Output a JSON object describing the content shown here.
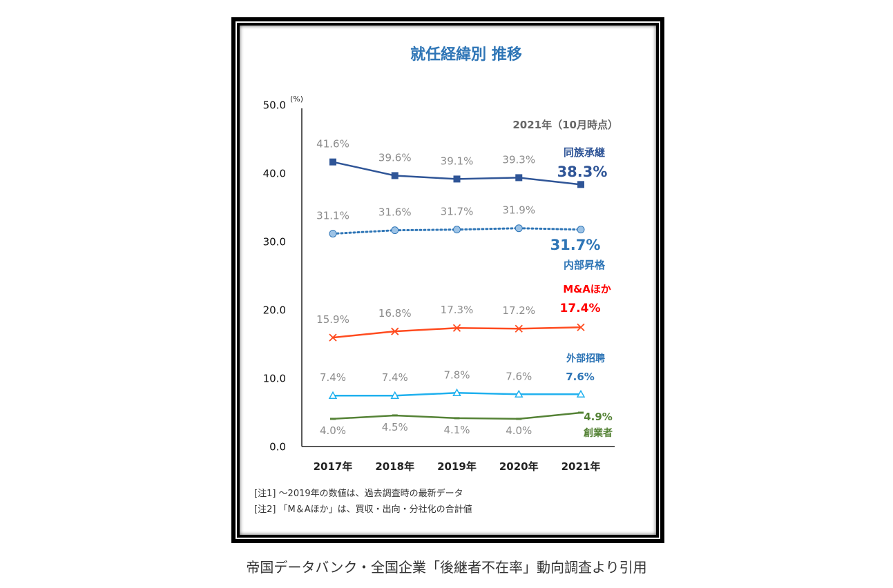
{
  "chart_data": {
    "type": "line",
    "title": "就任経緯別 推移",
    "ylabel": "(%)",
    "ylim": [
      0,
      50
    ],
    "yticks": [
      "0.0",
      "10.0",
      "20.0",
      "30.0",
      "40.0",
      "50.0"
    ],
    "categories": [
      "2017年",
      "2018年",
      "2019年",
      "2020年",
      "2021年"
    ],
    "grid": false,
    "annotation": "2021年（10月時点）",
    "series": [
      {
        "name": "同族承継",
        "values": [
          41.6,
          39.6,
          39.1,
          39.3,
          38.3
        ],
        "labels": [
          "41.6%",
          "39.6%",
          "39.1%",
          "39.3%",
          "38.3%"
        ],
        "color": "#2f5597",
        "label_color": "#2f5597",
        "marker": "square",
        "dash": false
      },
      {
        "name": "内部昇格",
        "values": [
          31.1,
          31.6,
          31.7,
          31.9,
          31.7
        ],
        "labels": [
          "31.1%",
          "31.6%",
          "31.7%",
          "31.9%",
          "31.7%"
        ],
        "color": "#2e75b6",
        "label_color": "#2e75b6",
        "marker": "circle",
        "dash": true
      },
      {
        "name": "M&Aほか",
        "values": [
          15.9,
          16.8,
          17.3,
          17.2,
          17.4
        ],
        "labels": [
          "15.9%",
          "16.8%",
          "17.3%",
          "17.2%",
          "17.4%"
        ],
        "color": "#ff4b1f",
        "label_color": "#ff0000",
        "marker": "x",
        "dash": false
      },
      {
        "name": "外部招聘",
        "values": [
          7.4,
          7.4,
          7.8,
          7.6,
          7.6
        ],
        "labels": [
          "7.4%",
          "7.4%",
          "7.8%",
          "7.6%",
          "7.6%"
        ],
        "color": "#1fb0ee",
        "label_color": "#2e75b6",
        "marker": "triangle",
        "dash": false
      },
      {
        "name": "創業者",
        "values": [
          4.0,
          4.5,
          4.1,
          4.0,
          4.9
        ],
        "labels": [
          "4.0%",
          "4.5%",
          "4.1%",
          "4.0%",
          "4.9%"
        ],
        "color": "#548235",
        "label_color": "#548235",
        "marker": "dash",
        "dash": false
      }
    ],
    "notes": [
      "[注1] ～2019年の数値は、過去調査時の最新データ",
      "[注2] 「M＆Aほか」は、買収・出向・分社化の合計値"
    ]
  },
  "caption": "帝国データバンク・全国企業「後継者不在率」動向調査より引用"
}
